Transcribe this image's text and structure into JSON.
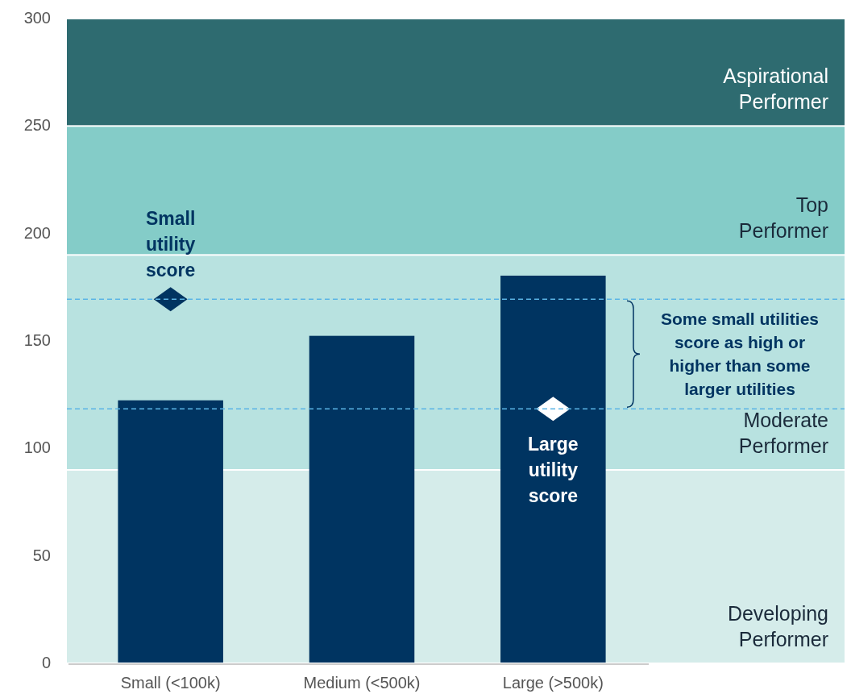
{
  "chart_data": {
    "type": "bar",
    "categories": [
      "Small (<100k)",
      "Medium (<500k)",
      "Large (>500k)"
    ],
    "series": [
      {
        "color": "#003461",
        "values": [
          122,
          152,
          180
        ]
      },
      {
        "type": "scatter",
        "x": [
          "Small (<100k)"
        ],
        "values": [
          169
        ],
        "color": "#003461",
        "marker": "diamond"
      },
      {
        "type": "scatter",
        "x": [
          "Large (>500k)"
        ],
        "values": [
          118
        ],
        "color": "#ffffff",
        "marker": "diamond"
      }
    ],
    "ylim": [
      0,
      300
    ],
    "yticks": [
      0,
      50,
      100,
      150,
      200,
      250,
      300
    ],
    "bands": [
      {
        "axis": "y",
        "from": 0,
        "to": 90,
        "label": "Developing Performer",
        "color": "#d5ecea"
      },
      {
        "axis": "y",
        "from": 90,
        "to": 190,
        "label": "Moderate Performer",
        "color": "#b8e2e0"
      },
      {
        "axis": "y",
        "from": 190,
        "to": 250,
        "label": "Top Performer",
        "color": "#84ccc8"
      },
      {
        "axis": "y",
        "from": 250,
        "to": 300,
        "label": "Aspirational Performer",
        "color": "#2e6b70"
      }
    ],
    "ref_lines": [
      {
        "axis": "y",
        "value": 169,
        "color": "#5ab4e5",
        "line_style": "dashed"
      },
      {
        "axis": "y",
        "value": 118,
        "color": "#5ab4e5",
        "line_style": "dashed"
      }
    ],
    "annotations": [
      {
        "text": "Small utility score",
        "x": "Small (<100k)",
        "y": 169
      },
      {
        "text": "Large utility score",
        "x": "Large (>500k)",
        "y": 118
      },
      "Some small utilities score as high or higher than some larger utilities"
    ],
    "grid": false
  }
}
